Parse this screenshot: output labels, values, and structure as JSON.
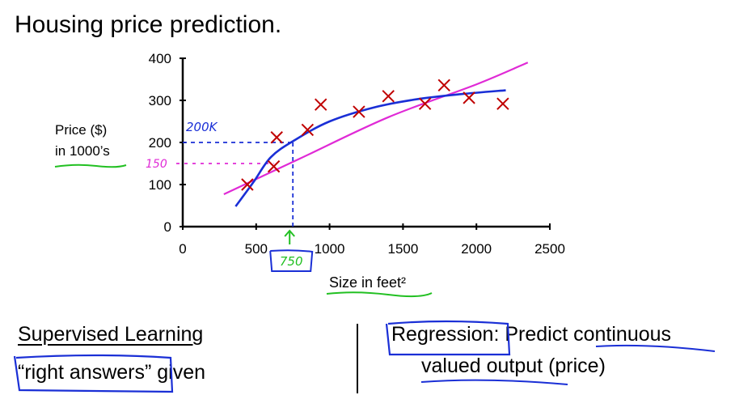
{
  "title": "Housing price prediction.",
  "chart_data": {
    "type": "scatter",
    "title": "Housing price prediction.",
    "xlabel": "Size in feet²",
    "ylabel_line1": "Price ($)",
    "ylabel_line2": "in 1000’s",
    "xlim": [
      0,
      2500
    ],
    "ylim": [
      0,
      400
    ],
    "x_ticks": [
      0,
      500,
      1000,
      1500,
      2000,
      2500
    ],
    "y_ticks": [
      0,
      100,
      200,
      300,
      400
    ],
    "grid": false,
    "points": [
      {
        "x": 440,
        "y": 100
      },
      {
        "x": 620,
        "y": 143
      },
      {
        "x": 640,
        "y": 212
      },
      {
        "x": 850,
        "y": 230
      },
      {
        "x": 940,
        "y": 290
      },
      {
        "x": 1200,
        "y": 273
      },
      {
        "x": 1400,
        "y": 310
      },
      {
        "x": 1650,
        "y": 292
      },
      {
        "x": 1780,
        "y": 336
      },
      {
        "x": 1950,
        "y": 306
      },
      {
        "x": 2180,
        "y": 292
      }
    ],
    "fit_straight": [
      {
        "x": 280,
        "y": 77
      },
      {
        "x": 800,
        "y": 162
      },
      {
        "x": 1400,
        "y": 260
      },
      {
        "x": 2000,
        "y": 338
      },
      {
        "x": 2350,
        "y": 390
      }
    ],
    "fit_curve": [
      {
        "x": 360,
        "y": 48
      },
      {
        "x": 480,
        "y": 105
      },
      {
        "x": 600,
        "y": 165
      },
      {
        "x": 760,
        "y": 205
      },
      {
        "x": 1000,
        "y": 250
      },
      {
        "x": 1300,
        "y": 283
      },
      {
        "x": 1600,
        "y": 303
      },
      {
        "x": 1900,
        "y": 315
      },
      {
        "x": 2200,
        "y": 324
      }
    ],
    "annotations": {
      "query_x": 750,
      "query_label": "750",
      "curve_y": 200,
      "curve_label": "200K",
      "line_y": 150,
      "line_label": "150"
    },
    "colors": {
      "points": "#c00000",
      "curve": "#1a2fd6",
      "line": "#e02ad6",
      "highlight": "#22c022",
      "axis": "#000000"
    }
  },
  "bottom": {
    "left_heading": "Supervised Learning",
    "left_quote_open": "“",
    "left_phrase": "right answers”",
    "left_given": " given",
    "right_term": "Regression",
    "right_colon": ":",
    "right_predict": " Predict ",
    "right_continuous": "continuous",
    "right_valued_output": "valued output",
    "right_price": " (price)"
  }
}
